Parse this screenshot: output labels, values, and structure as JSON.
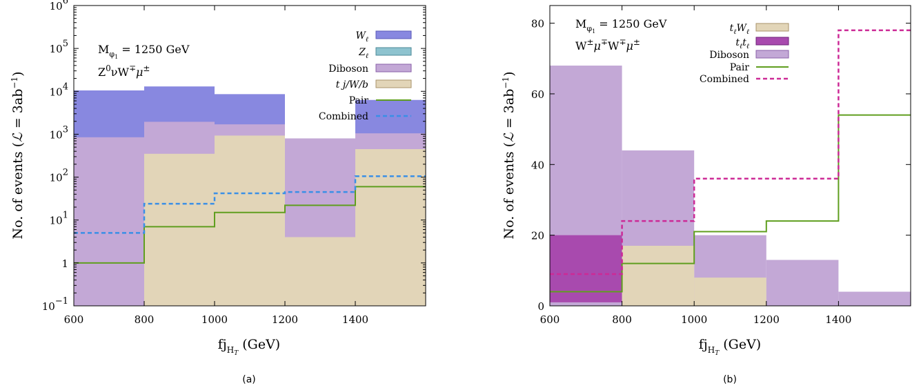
{
  "colors": {
    "W_lep": "#8888e0",
    "Z_lep": "#8ec3cf",
    "diboson": "#c3a8d6",
    "tj": "#e2d5b8",
    "tt": "#a84aae",
    "tW": "#e2d5b8",
    "pair": "#5f9e1e",
    "combined_a": "#3a8fe6",
    "combined_b": "#cc2a96"
  },
  "chart_data": [
    {
      "id": "a",
      "type": "histogram",
      "caption": "(a)",
      "xlabel": "fj_{H_T} (GeV)",
      "ylabel": "No. of events (ℒ = 3ab⁻¹)",
      "annotations": [
        "M_{φ1} = 1250 GeV",
        "Z⁰νW∓μ±"
      ],
      "bin_edges": [
        600,
        800,
        1000,
        1200,
        1400,
        1600
      ],
      "xlim": [
        600,
        1600
      ],
      "x_ticks": [
        "600",
        "800",
        "1000",
        "1200",
        "1400"
      ],
      "y_scale": "log",
      "ylim": [
        0.1,
        1000000
      ],
      "y_ticks": [
        {
          "value": 0.1,
          "base": "10",
          "exp": "−1"
        },
        {
          "value": 1,
          "base": "1",
          "exp": ""
        },
        {
          "value": 10,
          "base": "10",
          "exp": "1"
        },
        {
          "value": 100,
          "base": "10",
          "exp": "2"
        },
        {
          "value": 1000,
          "base": "10",
          "exp": "3"
        },
        {
          "value": 10000,
          "base": "10",
          "exp": "4"
        },
        {
          "value": 100000,
          "base": "10",
          "exp": "5"
        },
        {
          "value": 1000000,
          "base": "10",
          "exp": "6"
        }
      ],
      "stacked": [
        {
          "name": "W_ℓ",
          "color": "#8888e0",
          "values": [
            10500,
            13000,
            8600,
            0,
            6300
          ]
        },
        {
          "name": "Diboson",
          "color": "#c3a8d6",
          "values": [
            850,
            1950,
            1700,
            800,
            1050
          ]
        },
        {
          "name": "tj/W/b",
          "color": "#e2d5b8",
          "values": [
            0,
            350,
            930,
            4,
            450
          ]
        }
      ],
      "lines": [
        {
          "name": "Pair",
          "color": "#5f9e1e",
          "style": "solid",
          "values": [
            1,
            7,
            15,
            22,
            60
          ]
        },
        {
          "name": "Combined",
          "color": "#3a8fe6",
          "style": "dashed",
          "values": [
            5,
            24,
            42,
            45,
            105
          ]
        }
      ],
      "legend": [
        "W_ℓ",
        "Z_ℓ",
        "Diboson",
        "tj/W/b",
        "Pair",
        "Combined"
      ],
      "legend_position": "top-right",
      "grid": false
    },
    {
      "id": "b",
      "type": "histogram",
      "caption": "(b)",
      "xlabel": "fj_{H_T} (GeV)",
      "ylabel": "No. of events (ℒ = 3ab⁻¹)",
      "annotations": [
        "M_{φ1} = 1250 GeV",
        "W±μ∓W∓μ±"
      ],
      "bin_edges": [
        600,
        800,
        1000,
        1200,
        1400,
        1600
      ],
      "xlim": [
        600,
        1600
      ],
      "x_ticks": [
        "600",
        "800",
        "1000",
        "1200",
        "1400"
      ],
      "y_scale": "linear",
      "ylim": [
        0,
        85
      ],
      "y_ticks": [
        {
          "value": 0,
          "label": "0"
        },
        {
          "value": 20,
          "label": "20"
        },
        {
          "value": 40,
          "label": "40"
        },
        {
          "value": 60,
          "label": "60"
        },
        {
          "value": 80,
          "label": "80"
        }
      ],
      "stacked": [
        {
          "name": "Diboson",
          "color": "#c3a8d6",
          "values": [
            68,
            44,
            20,
            13,
            4
          ]
        },
        {
          "name": "t_ℓt_ℓ",
          "color": "#a84aae",
          "values": [
            20,
            0,
            0,
            0,
            0
          ]
        },
        {
          "name": "t_ℓW_ℓ",
          "color": "#e2d5b8",
          "values": [
            0,
            17,
            8,
            0,
            0
          ]
        }
      ],
      "lines": [
        {
          "name": "Pair",
          "color": "#5f9e1e",
          "style": "solid",
          "values": [
            4,
            12,
            21,
            24,
            54
          ]
        },
        {
          "name": "Combined",
          "color": "#cc2a96",
          "style": "dashed",
          "values": [
            9,
            24,
            36,
            36,
            78
          ]
        }
      ],
      "legend": [
        "t_ℓW_ℓ",
        "t_ℓt_ℓ",
        "Diboson",
        "Pair",
        "Combined"
      ],
      "legend_position": "top-right",
      "grid": false
    }
  ]
}
